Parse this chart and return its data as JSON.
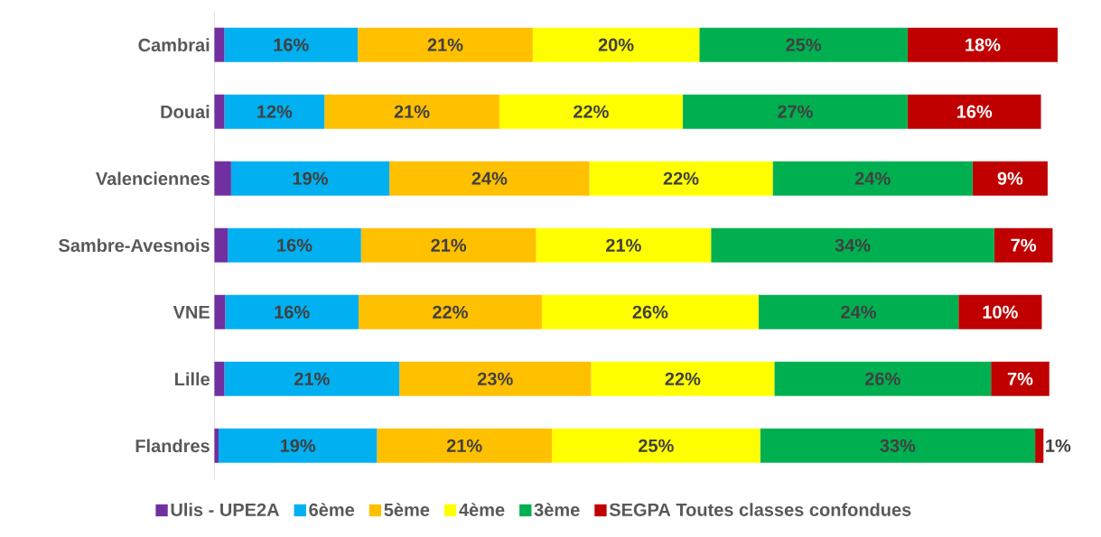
{
  "chart_data": {
    "type": "bar",
    "orientation": "horizontal",
    "stacked": true,
    "legend": "bottom",
    "categories": [
      "Cambrai",
      "Douai",
      "Valenciennes",
      "Sambre-Avesnois",
      "VNE",
      "Lille",
      "Flandres"
    ],
    "series": [
      {
        "name": "Ulis - UPE2A",
        "color": "#7030a0",
        "values": [
          1.2,
          1.2,
          2,
          1.6,
          1.3,
          1.2,
          0.5
        ],
        "value_labels": [
          null,
          null,
          null,
          null,
          null,
          null,
          null
        ]
      },
      {
        "name": "6ème",
        "color": "#00b0f0",
        "values": [
          16,
          12,
          19,
          16,
          16,
          21,
          19
        ],
        "value_labels": [
          "16%",
          "12%",
          "19%",
          "16%",
          "16%",
          "21%",
          "19%"
        ]
      },
      {
        "name": "5ème",
        "color": "#ffc000",
        "values": [
          21,
          21,
          24,
          21,
          22,
          23,
          21
        ],
        "value_labels": [
          "21%",
          "21%",
          "24%",
          "21%",
          "22%",
          "23%",
          "21%"
        ]
      },
      {
        "name": "4ème",
        "color": "#ffff00",
        "values": [
          20,
          22,
          22,
          21,
          26,
          22,
          25
        ],
        "value_labels": [
          "20%",
          "22%",
          "22%",
          "21%",
          "26%",
          "22%",
          "25%"
        ]
      },
      {
        "name": "3ème",
        "color": "#00b050",
        "values": [
          25,
          27,
          24,
          34,
          24,
          26,
          33
        ],
        "value_labels": [
          "25%",
          "27%",
          "24%",
          "34%",
          "24%",
          "26%",
          "33%"
        ]
      },
      {
        "name": "SEGPA Toutes classes confondues",
        "color": "#c00000",
        "values": [
          18,
          16,
          9,
          7,
          10,
          7,
          1
        ],
        "value_labels": [
          "18%",
          "16%",
          "9%",
          "7%",
          "10%",
          "7%",
          "1%"
        ]
      }
    ]
  }
}
